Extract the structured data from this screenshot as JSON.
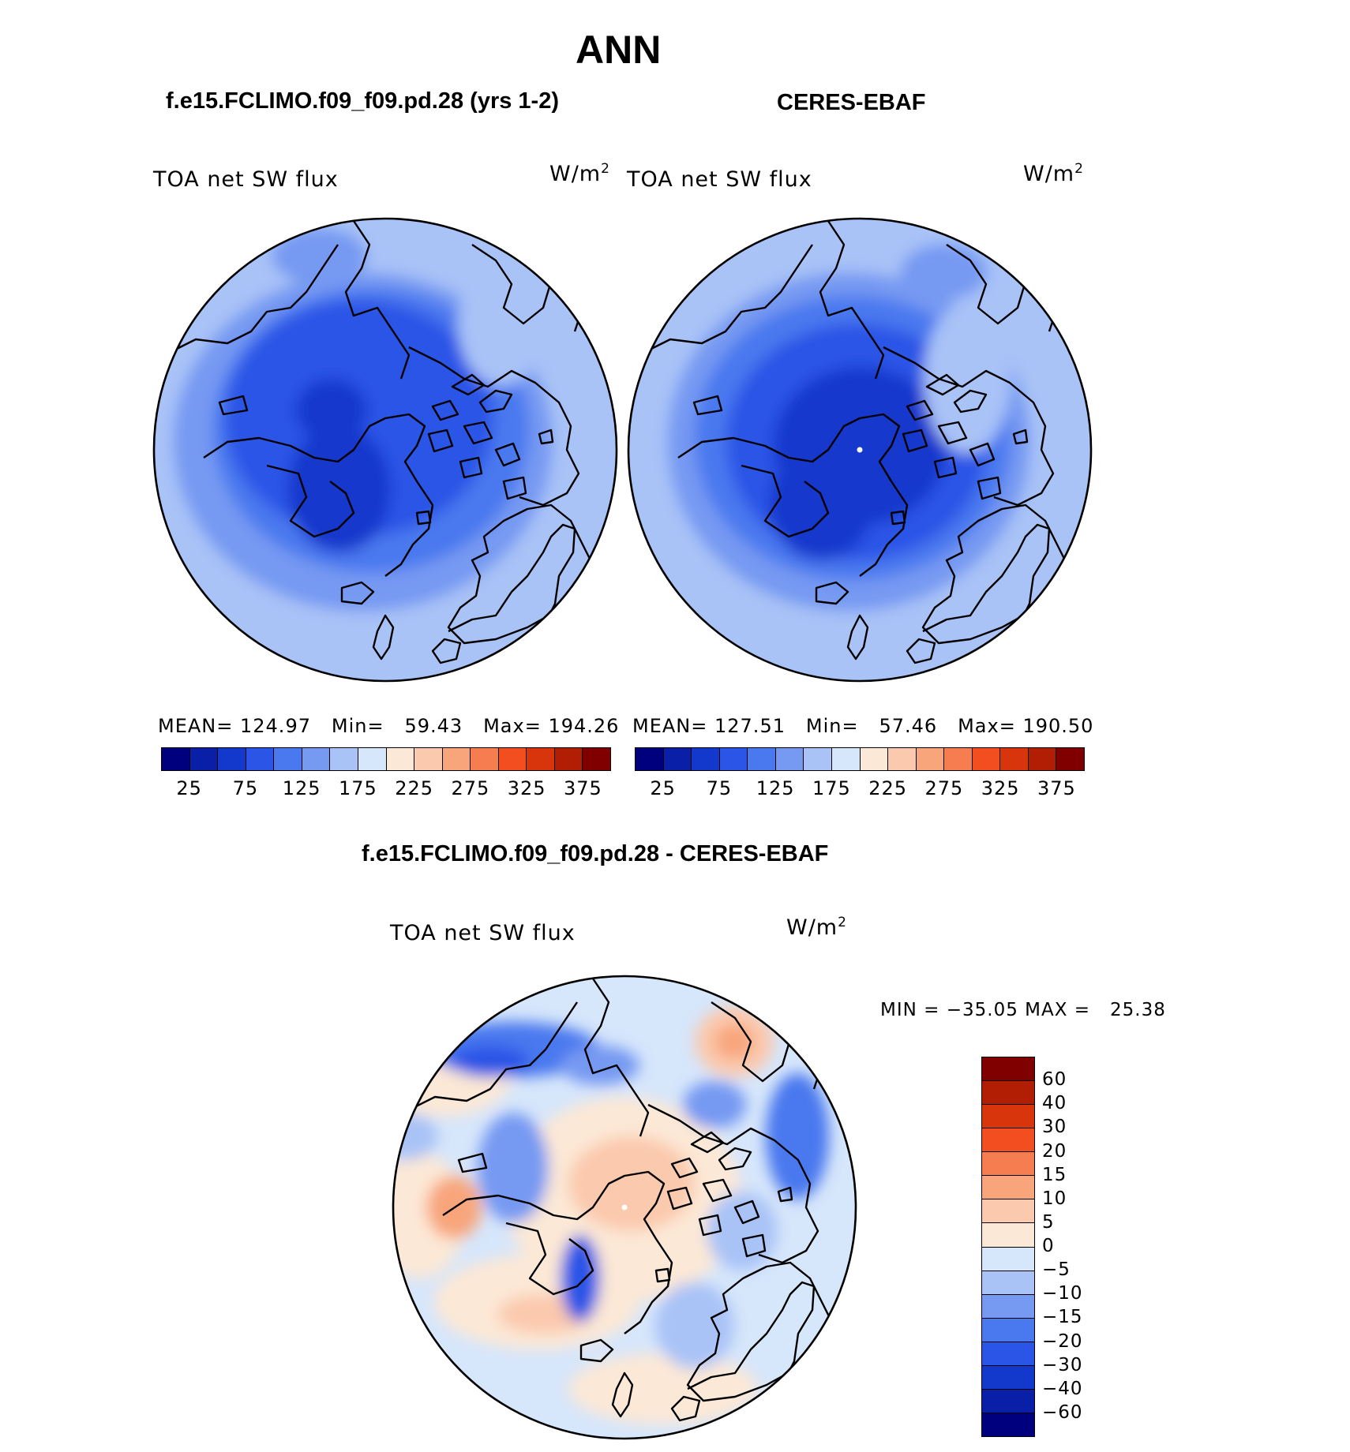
{
  "title": "ANN",
  "panels": [
    {
      "heading": "f.e15.FCLIMO.f09_f09.pd.28 (yrs 1-2)",
      "variable": "TOA net SW flux",
      "units": "W/m",
      "units_sup": "2",
      "stats": {
        "mean_label": "MEAN=",
        "mean": "124.97",
        "min_label": "Min=",
        "min": "59.43",
        "max_label": "Max=",
        "max": "194.26"
      }
    },
    {
      "heading": "CERES-EBAF",
      "variable": "TOA net SW flux",
      "units": "W/m",
      "units_sup": "2",
      "stats": {
        "mean_label": "MEAN=",
        "mean": "127.51",
        "min_label": "Min=",
        "min": "57.46",
        "max_label": "Max=",
        "max": "190.50"
      }
    }
  ],
  "abs_colorbar": {
    "tick_labels": [
      "25",
      "75",
      "125",
      "175",
      "225",
      "275",
      "325",
      "375"
    ],
    "colors": [
      "#00007f",
      "#0a1fa8",
      "#1238cc",
      "#2a55e6",
      "#4a78ef",
      "#7699f2",
      "#a9c3f7",
      "#d6e6fb",
      "#fce8d6",
      "#fbc9ad",
      "#f8a57c",
      "#f67d50",
      "#f24e1f",
      "#d8350d",
      "#b21e04",
      "#800000"
    ]
  },
  "diff_panel": {
    "heading": "f.e15.FCLIMO.f09_f09.pd.28 - CERES-EBAF",
    "variable": "TOA net SW flux",
    "units": "W/m",
    "units_sup": "2",
    "range_text": "MIN = −35.05 MAX =   25.38",
    "colorbar": {
      "tick_labels": [
        "60",
        "40",
        "30",
        "20",
        "15",
        "10",
        "5",
        "0",
        "−5",
        "−10",
        "−15",
        "−20",
        "−30",
        "−40",
        "−60"
      ],
      "colors": [
        "#800000",
        "#b21e04",
        "#d8350d",
        "#f24e1f",
        "#f67d50",
        "#f8a57c",
        "#fbc9ad",
        "#fce8d6",
        "#d6e6fb",
        "#a9c3f7",
        "#7699f2",
        "#4a78ef",
        "#2a55e6",
        "#1238cc",
        "#0a1fa8",
        "#00007f"
      ]
    }
  }
}
